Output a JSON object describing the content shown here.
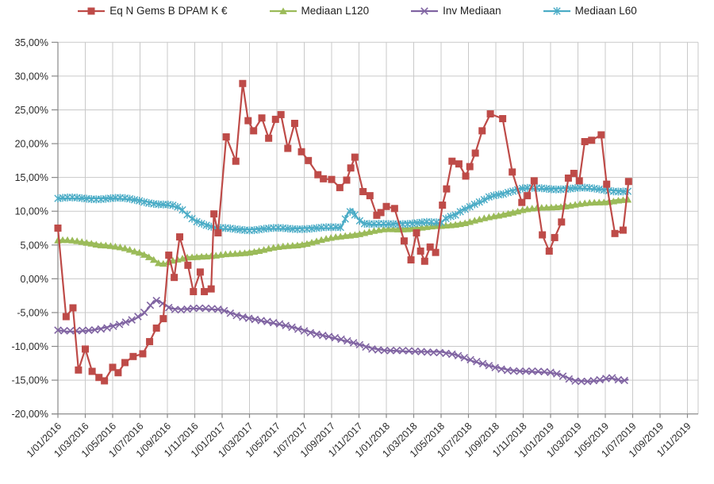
{
  "chart_data": {
    "type": "line",
    "title": "",
    "x_unit": "months_since_2016-01-01",
    "grid": true,
    "legend_position": "top",
    "x_axis": {
      "tick_step_months": 2,
      "label_rotation": -45,
      "tick_labels": [
        "1/01/2016",
        "1/03/2016",
        "1/05/2016",
        "1/07/2016",
        "1/09/2016",
        "1/11/2016",
        "1/01/2017",
        "1/03/2017",
        "1/05/2017",
        "1/07/2017",
        "1/09/2017",
        "1/11/2017",
        "1/01/2018",
        "1/03/2018",
        "1/05/2018",
        "1/07/2018",
        "1/09/2018",
        "1/11/2018",
        "1/01/2019",
        "1/03/2019",
        "1/05/2019",
        "1/07/2019",
        "1/09/2019",
        "1/11/2019"
      ]
    },
    "y_axis": {
      "min": -20,
      "max": 35,
      "step": 5,
      "tick_labels": [
        "35,00%",
        "30,00%",
        "25,00%",
        "20,00%",
        "15,00%",
        "10,00%",
        "5,00%",
        "0,00%",
        "-5,00%",
        "-10,00%",
        "-15,00%",
        "-20,00%"
      ]
    },
    "colors": {
      "grid": "#c9c9c9",
      "axis": "#898989",
      "text": "#2b2b2b"
    },
    "series": [
      {
        "name": "Eq N Gems B DPAM K €",
        "color": "#be4b48",
        "marker": "square",
        "points": [
          [
            0,
            7.5
          ],
          [
            0.6,
            -5.6
          ],
          [
            1.1,
            -4.3
          ],
          [
            1.5,
            -13.5
          ],
          [
            2,
            -10.4
          ],
          [
            2.5,
            -13.7
          ],
          [
            3,
            -14.6
          ],
          [
            3.4,
            -15.1
          ],
          [
            4,
            -13.1
          ],
          [
            4.4,
            -13.9
          ],
          [
            4.9,
            -12.4
          ],
          [
            5.5,
            -11.5
          ],
          [
            6.2,
            -11.1
          ],
          [
            6.7,
            -9.3
          ],
          [
            7.2,
            -7.3
          ],
          [
            7.7,
            -5.9
          ],
          [
            8.1,
            3.5
          ],
          [
            8.5,
            0.2
          ],
          [
            8.9,
            6.2
          ],
          [
            9.5,
            2.0
          ],
          [
            9.9,
            -1.9
          ],
          [
            10.4,
            1.0
          ],
          [
            10.7,
            -1.9
          ],
          [
            11.2,
            -1.5
          ],
          [
            11.4,
            9.6
          ],
          [
            11.7,
            6.8
          ],
          [
            12.3,
            21.0
          ],
          [
            13,
            17.4
          ],
          [
            13.5,
            28.9
          ],
          [
            13.9,
            23.4
          ],
          [
            14.3,
            21.9
          ],
          [
            14.9,
            23.8
          ],
          [
            15.4,
            20.8
          ],
          [
            15.9,
            23.6
          ],
          [
            16.3,
            24.3
          ],
          [
            16.8,
            19.3
          ],
          [
            17.3,
            23.0
          ],
          [
            17.8,
            18.8
          ],
          [
            18.3,
            17.5
          ],
          [
            19,
            15.4
          ],
          [
            19.4,
            14.8
          ],
          [
            20,
            14.7
          ],
          [
            20.6,
            13.5
          ],
          [
            21.1,
            14.6
          ],
          [
            21.4,
            16.4
          ],
          [
            21.7,
            18.0
          ],
          [
            22.3,
            12.9
          ],
          [
            22.8,
            12.3
          ],
          [
            23.3,
            9.4
          ],
          [
            23.6,
            9.8
          ],
          [
            24,
            10.7
          ],
          [
            24.6,
            10.4
          ],
          [
            25.3,
            5.6
          ],
          [
            25.8,
            2.8
          ],
          [
            26.2,
            6.8
          ],
          [
            26.5,
            4.1
          ],
          [
            26.8,
            2.6
          ],
          [
            27.2,
            4.7
          ],
          [
            27.6,
            3.9
          ],
          [
            28.1,
            10.9
          ],
          [
            28.4,
            13.3
          ],
          [
            28.8,
            17.4
          ],
          [
            29.3,
            17.0
          ],
          [
            29.8,
            15.2
          ],
          [
            30.1,
            16.6
          ],
          [
            30.5,
            18.6
          ],
          [
            31,
            21.9
          ],
          [
            31.6,
            24.4
          ],
          [
            32.5,
            23.7
          ],
          [
            33.2,
            15.8
          ],
          [
            33.9,
            11.3
          ],
          [
            34.3,
            12.3
          ],
          [
            34.8,
            14.5
          ],
          [
            35.4,
            6.5
          ],
          [
            35.9,
            4.1
          ],
          [
            36.3,
            6.1
          ],
          [
            36.8,
            8.4
          ],
          [
            37.3,
            14.9
          ],
          [
            37.7,
            15.6
          ],
          [
            38.1,
            14.5
          ],
          [
            38.5,
            20.3
          ],
          [
            39,
            20.5
          ],
          [
            39.7,
            21.3
          ],
          [
            40.1,
            14.0
          ],
          [
            40.7,
            6.7
          ],
          [
            41.3,
            7.2
          ],
          [
            41.7,
            14.4
          ]
        ]
      },
      {
        "name": "Mediaan L120",
        "color": "#9bbb59",
        "marker": "triangle",
        "points": [
          [
            0,
            5.7
          ],
          [
            0.5,
            5.7
          ],
          [
            1,
            5.6
          ],
          [
            1.5,
            5.5
          ],
          [
            2,
            5.4
          ],
          [
            2.5,
            5.3
          ],
          [
            3,
            5.1
          ],
          [
            3.5,
            5.0
          ],
          [
            4,
            4.8
          ],
          [
            4.5,
            4.6
          ],
          [
            5,
            4.4
          ],
          [
            5.5,
            4.1
          ],
          [
            6,
            3.9
          ],
          [
            6.5,
            3.5
          ],
          [
            7,
            2.9
          ],
          [
            7.4,
            2.3
          ],
          [
            7.8,
            2.2
          ],
          [
            8.2,
            2.5
          ],
          [
            8.6,
            2.7
          ],
          [
            9,
            2.9
          ],
          [
            9.5,
            3.2
          ],
          [
            10,
            3.3
          ],
          [
            10.5,
            3.4
          ],
          [
            11,
            3.4
          ],
          [
            11.5,
            3.4
          ],
          [
            12,
            3.5
          ],
          [
            12.5,
            3.6
          ],
          [
            13,
            3.7
          ],
          [
            14,
            4.0
          ],
          [
            15,
            4.3
          ],
          [
            16,
            4.6
          ],
          [
            17,
            4.9
          ],
          [
            18,
            5.2
          ],
          [
            19,
            5.6
          ],
          [
            20,
            6.0
          ],
          [
            21,
            6.4
          ],
          [
            22,
            6.7
          ],
          [
            23,
            7.0
          ],
          [
            24,
            7.3
          ],
          [
            25,
            7.4
          ],
          [
            26,
            7.5
          ],
          [
            27,
            7.6
          ],
          [
            28,
            7.8
          ],
          [
            29,
            8.1
          ],
          [
            30,
            8.4
          ],
          [
            31,
            8.8
          ],
          [
            32,
            9.3
          ],
          [
            33,
            9.8
          ],
          [
            34,
            10.2
          ],
          [
            35,
            10.4
          ],
          [
            36,
            10.6
          ],
          [
            37,
            10.8
          ],
          [
            38,
            11.0
          ],
          [
            39,
            11.2
          ],
          [
            40,
            11.4
          ],
          [
            41,
            11.7
          ],
          [
            41.7,
            11.7
          ]
        ]
      },
      {
        "name": "Inv Mediaan",
        "color": "#8064a2",
        "marker": "x",
        "points": [
          [
            0,
            -7.6
          ],
          [
            0.6,
            -7.8
          ],
          [
            1.5,
            -7.8
          ],
          [
            2.5,
            -7.6
          ],
          [
            3.5,
            -7.2
          ],
          [
            4.5,
            -6.7
          ],
          [
            5.5,
            -6.1
          ],
          [
            6.2,
            -5.3
          ],
          [
            6.6,
            -4.4
          ],
          [
            7,
            -3.3
          ],
          [
            7.3,
            -3.2
          ],
          [
            7.8,
            -3.8
          ],
          [
            8.3,
            -4.4
          ],
          [
            9,
            -4.5
          ],
          [
            10,
            -4.4
          ],
          [
            11,
            -4.5
          ],
          [
            12,
            -4.6
          ],
          [
            13,
            -5.3
          ],
          [
            14,
            -5.8
          ],
          [
            15,
            -6.3
          ],
          [
            16,
            -6.7
          ],
          [
            17,
            -7.1
          ],
          [
            18,
            -7.6
          ],
          [
            19,
            -8.2
          ],
          [
            20,
            -8.7
          ],
          [
            21,
            -9.2
          ],
          [
            22,
            -9.7
          ],
          [
            23,
            -10.3
          ],
          [
            24,
            -10.6
          ],
          [
            25,
            -10.7
          ],
          [
            26,
            -10.8
          ],
          [
            27,
            -10.8
          ],
          [
            28,
            -10.8
          ],
          [
            29,
            -11.2
          ],
          [
            30,
            -12.0
          ],
          [
            31,
            -12.6
          ],
          [
            32,
            -13.1
          ],
          [
            33,
            -13.5
          ],
          [
            34,
            -13.7
          ],
          [
            35,
            -13.8
          ],
          [
            36,
            -13.9
          ],
          [
            36.6,
            -14.1
          ],
          [
            37.7,
            -15.0
          ],
          [
            38.8,
            -15.2
          ],
          [
            39.8,
            -15.0
          ],
          [
            40.4,
            -14.7
          ],
          [
            41.2,
            -15.1
          ],
          [
            41.7,
            -14.9
          ]
        ]
      },
      {
        "name": "Mediaan L60",
        "color": "#4bacc6",
        "marker": "star",
        "points": [
          [
            0,
            11.9
          ],
          [
            1,
            11.9
          ],
          [
            2,
            11.9
          ],
          [
            3,
            11.9
          ],
          [
            4,
            11.9
          ],
          [
            5,
            11.8
          ],
          [
            6,
            11.6
          ],
          [
            6.5,
            11.4
          ],
          [
            7,
            11.2
          ],
          [
            7.5,
            11.0
          ],
          [
            8,
            10.9
          ],
          [
            8.5,
            10.7
          ],
          [
            9,
            10.3
          ],
          [
            9.5,
            9.4
          ],
          [
            10,
            8.7
          ],
          [
            10.5,
            8.3
          ],
          [
            11,
            7.9
          ],
          [
            11.5,
            7.5
          ],
          [
            12,
            7.4
          ],
          [
            13,
            7.3
          ],
          [
            14,
            7.3
          ],
          [
            15,
            7.4
          ],
          [
            16,
            7.4
          ],
          [
            17,
            7.4
          ],
          [
            18,
            7.5
          ],
          [
            19,
            7.5
          ],
          [
            20,
            7.5
          ],
          [
            20.7,
            7.6
          ],
          [
            21.2,
            9.8
          ],
          [
            21.5,
            10.3
          ],
          [
            21.9,
            8.9
          ],
          [
            22.4,
            8.2
          ],
          [
            23,
            8.0
          ],
          [
            24,
            8.0
          ],
          [
            25,
            8.2
          ],
          [
            26,
            8.3
          ],
          [
            27,
            8.3
          ],
          [
            27.5,
            8.2
          ],
          [
            28,
            8.3
          ],
          [
            28.5,
            9.2
          ],
          [
            29,
            9.5
          ],
          [
            29.5,
            10.2
          ],
          [
            30,
            10.6
          ],
          [
            30.5,
            11.0
          ],
          [
            31,
            11.4
          ],
          [
            31.5,
            12.0
          ],
          [
            32,
            12.4
          ],
          [
            32.5,
            12.6
          ],
          [
            33,
            13.0
          ],
          [
            33.5,
            13.2
          ],
          [
            34,
            13.4
          ],
          [
            35,
            13.3
          ],
          [
            36,
            13.3
          ],
          [
            37,
            13.4
          ],
          [
            38,
            13.4
          ],
          [
            39,
            13.3
          ],
          [
            40,
            13.2
          ],
          [
            41,
            13.0
          ],
          [
            41.7,
            12.9
          ]
        ]
      }
    ]
  }
}
